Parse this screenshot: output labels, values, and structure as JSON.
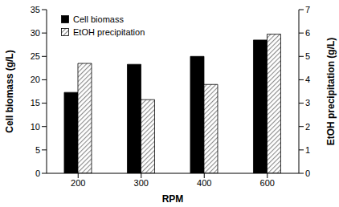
{
  "chart_data": {
    "type": "bar",
    "categories": [
      "200",
      "300",
      "400",
      "600"
    ],
    "x_label": "RPM",
    "y_label": "Cell biomass (g/L)",
    "y2_label": "EtOH precipitation (g/L)",
    "series": [
      {
        "name": "Cell biomass",
        "color": "#000000",
        "values": [
          17.3,
          23.3,
          25.0,
          28.5
        ]
      },
      {
        "name": "EtOH precipitation",
        "color": "#8c8c8c",
        "values": [
          4.7,
          3.15,
          3.8,
          5.95
        ],
        "axis": "y2"
      }
    ],
    "ylim": [
      0,
      35
    ],
    "yticks": [
      0,
      5,
      10,
      15,
      20,
      25,
      30,
      35
    ],
    "y2lim": [
      0,
      7
    ],
    "y2ticks": [
      0,
      1,
      2,
      3,
      4,
      5,
      6,
      7
    ],
    "legend": "upper left",
    "grid": false
  }
}
